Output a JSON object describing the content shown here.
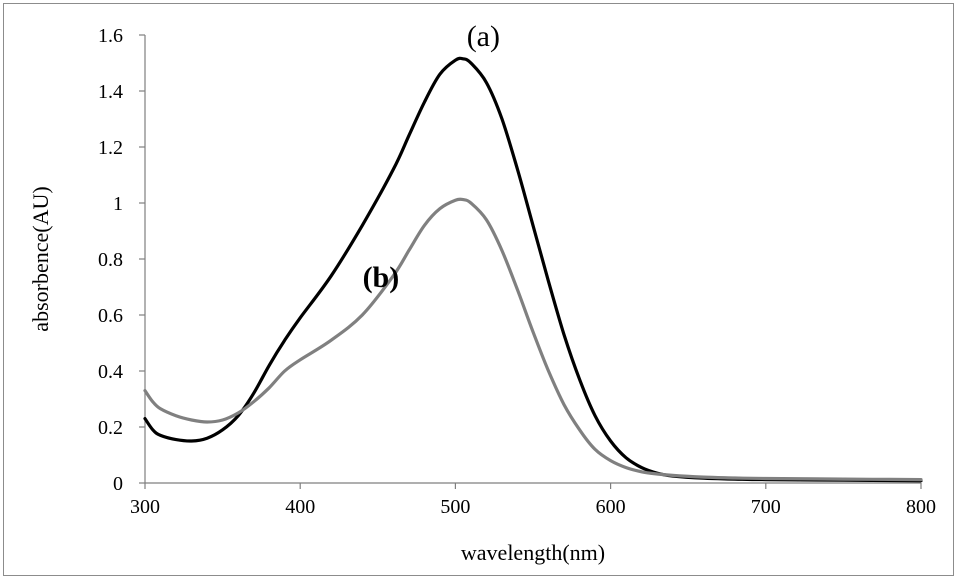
{
  "chart_data": {
    "type": "line",
    "xlabel": "wavelength(nm)",
    "ylabel": "absorbence(AU)",
    "xlim": [
      300,
      800
    ],
    "ylim": [
      0,
      1.6
    ],
    "xticks": [
      "300",
      "400",
      "500",
      "600",
      "700",
      "800"
    ],
    "yticks": [
      "0",
      "0.2",
      "0.4",
      "0.6",
      "0.8",
      "1",
      "1.2",
      "1.4",
      "1.6"
    ],
    "grid": false,
    "annotations": [
      {
        "text": "(a)",
        "x": 518,
        "y": 1.56,
        "size": 30,
        "weight": "normal"
      },
      {
        "text": "(b)",
        "x": 452,
        "y": 0.7,
        "size": 30,
        "weight": "bold"
      }
    ],
    "series": [
      {
        "color": "#000000",
        "x": [
          300,
          305,
          310,
          320,
          330,
          340,
          350,
          360,
          370,
          380,
          390,
          400,
          420,
          440,
          460,
          470,
          480,
          490,
          500,
          505,
          510,
          520,
          530,
          540,
          550,
          560,
          570,
          580,
          590,
          600,
          610,
          620,
          630,
          640,
          660,
          680,
          700,
          750,
          800
        ],
        "y": [
          0.23,
          0.19,
          0.17,
          0.155,
          0.15,
          0.16,
          0.19,
          0.24,
          0.32,
          0.42,
          0.51,
          0.59,
          0.74,
          0.92,
          1.12,
          1.24,
          1.36,
          1.46,
          1.51,
          1.515,
          1.5,
          1.43,
          1.3,
          1.12,
          0.92,
          0.72,
          0.53,
          0.37,
          0.24,
          0.15,
          0.09,
          0.055,
          0.035,
          0.025,
          0.017,
          0.014,
          0.012,
          0.01,
          0.008
        ]
      },
      {
        "color": "#808080",
        "x": [
          300,
          305,
          310,
          320,
          330,
          340,
          350,
          360,
          370,
          380,
          390,
          400,
          420,
          440,
          460,
          470,
          480,
          490,
          500,
          505,
          510,
          520,
          530,
          540,
          550,
          560,
          570,
          580,
          590,
          600,
          610,
          620,
          630,
          640,
          660,
          680,
          700,
          750,
          800
        ],
        "y": [
          0.33,
          0.29,
          0.265,
          0.24,
          0.225,
          0.218,
          0.225,
          0.25,
          0.29,
          0.34,
          0.4,
          0.44,
          0.51,
          0.6,
          0.74,
          0.83,
          0.92,
          0.98,
          1.01,
          1.012,
          1.0,
          0.94,
          0.83,
          0.69,
          0.54,
          0.4,
          0.28,
          0.19,
          0.12,
          0.08,
          0.055,
          0.04,
          0.032,
          0.027,
          0.021,
          0.018,
          0.016,
          0.014,
          0.012
        ]
      }
    ]
  }
}
